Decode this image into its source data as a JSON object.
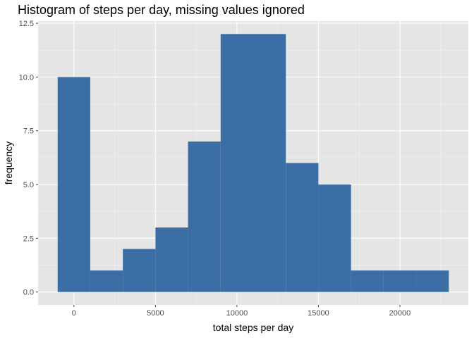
{
  "chart_data": {
    "type": "bar",
    "title": "Histogram of steps per day, missing values ignored",
    "xlabel": "total steps per day",
    "ylabel": "frequency",
    "bin_width": 2000,
    "bins": [
      {
        "x_start": -1000,
        "x_end": 1000,
        "count": 10
      },
      {
        "x_start": 1000,
        "x_end": 3000,
        "count": 1
      },
      {
        "x_start": 3000,
        "x_end": 5000,
        "count": 2
      },
      {
        "x_start": 5000,
        "x_end": 7000,
        "count": 3
      },
      {
        "x_start": 7000,
        "x_end": 9000,
        "count": 7
      },
      {
        "x_start": 9000,
        "x_end": 11000,
        "count": 12
      },
      {
        "x_start": 11000,
        "x_end": 13000,
        "count": 12
      },
      {
        "x_start": 13000,
        "x_end": 15000,
        "count": 6
      },
      {
        "x_start": 15000,
        "x_end": 17000,
        "count": 5
      },
      {
        "x_start": 17000,
        "x_end": 19000,
        "count": 1
      },
      {
        "x_start": 19000,
        "x_end": 21000,
        "count": 1
      },
      {
        "x_start": 21000,
        "x_end": 23000,
        "count": 1
      }
    ],
    "xlim": [
      -2200,
      24200
    ],
    "ylim": [
      -0.6,
      12.6
    ],
    "x_ticks": [
      0,
      5000,
      10000,
      15000,
      20000
    ],
    "x_tick_labels": [
      "0",
      "5000",
      "10000",
      "15000",
      "20000"
    ],
    "y_ticks": [
      0,
      2.5,
      5,
      7.5,
      10,
      12.5
    ],
    "y_tick_labels": [
      "0.0",
      "2.5",
      "5.0",
      "7.5",
      "10.0",
      "12.5"
    ],
    "grid": true,
    "colors": {
      "bar": "#3a6ea5",
      "panel_background": "#e5e5e5",
      "grid_major": "#ffffff",
      "grid_minor": "#f2f2f2",
      "tick_label": "#4d4d4d"
    }
  }
}
